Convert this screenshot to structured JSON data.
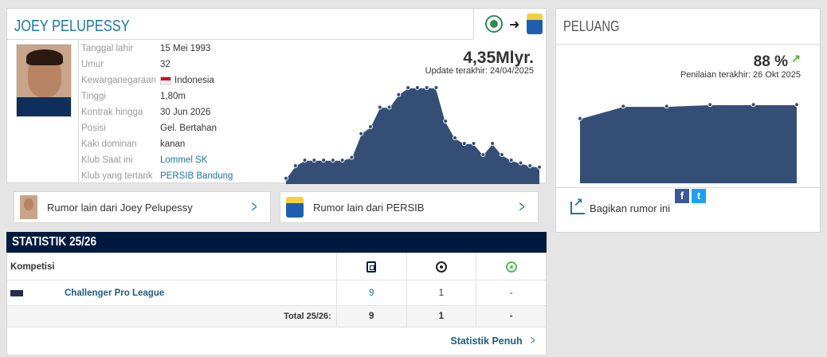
{
  "player": {
    "name": "JOEY PELUPESSY",
    "market_value": "4,35Mlyr.",
    "value_update": "Update terakhir: 24/04/2025",
    "info": [
      {
        "label": "Tanggal lahir",
        "value": "15 Mei 1993"
      },
      {
        "label": "Umur",
        "value": "32"
      },
      {
        "label": "Kewarganegaraan",
        "value": "Indonesia",
        "flag": true
      },
      {
        "label": "Tinggi",
        "value": "1,80m"
      },
      {
        "label": "Kontrak hingga",
        "value": "30 Jun 2026"
      },
      {
        "label": "Posisi",
        "value": "Gel. Bertahan"
      },
      {
        "label": "Kaki dominan",
        "value": "kanan"
      },
      {
        "label": "Klub Saat ini",
        "value": "Lommel SK",
        "link": true
      },
      {
        "label": "Klub yang tertarik",
        "value": "PERSIB Bandung",
        "link": true
      }
    ],
    "value_history": [
      {
        "x": 0,
        "y": 0.3
      },
      {
        "x": 1,
        "y": 1.2
      },
      {
        "x": 2,
        "y": 1.6
      },
      {
        "x": 3,
        "y": 1.6
      },
      {
        "x": 4,
        "y": 1.6
      },
      {
        "x": 5,
        "y": 1.6
      },
      {
        "x": 6,
        "y": 1.6
      },
      {
        "x": 7,
        "y": 1.8
      },
      {
        "x": 8,
        "y": 3.5
      },
      {
        "x": 9,
        "y": 4.0
      },
      {
        "x": 10,
        "y": 5.4
      },
      {
        "x": 11,
        "y": 5.4
      },
      {
        "x": 12,
        "y": 6.3
      },
      {
        "x": 13,
        "y": 6.8
      },
      {
        "x": 14,
        "y": 6.8
      },
      {
        "x": 15,
        "y": 6.8
      },
      {
        "x": 16,
        "y": 6.8
      },
      {
        "x": 17,
        "y": 4.4
      },
      {
        "x": 18,
        "y": 3.2
      },
      {
        "x": 19,
        "y": 2.8
      },
      {
        "x": 20,
        "y": 2.8
      },
      {
        "x": 21,
        "y": 2.0
      },
      {
        "x": 22,
        "y": 2.8
      },
      {
        "x": 23,
        "y": 2.0
      },
      {
        "x": 24,
        "y": 1.6
      },
      {
        "x": 25,
        "y": 1.4
      },
      {
        "x": 26,
        "y": 1.2
      },
      {
        "x": 27,
        "y": 1.1
      }
    ]
  },
  "transfer": {
    "from_club_icon": "lommel-badge-icon",
    "arrow_icon": "arrow-right-icon",
    "to_club_icon": "persib-badge-icon"
  },
  "rumors": {
    "player_link": "Rumor lain dari Joey Pelupessy",
    "club_link": "Rumor lain dari PERSIB"
  },
  "stats": {
    "title": "STATISTIK 25/26",
    "competition_header": "Kompetisi",
    "rows": [
      {
        "competition": "Challenger Pro League",
        "appearances": "9",
        "goals": "1",
        "assists": "-"
      }
    ],
    "total": {
      "label": "Total 25/26:",
      "appearances": "9",
      "goals": "1",
      "assists": "-"
    },
    "full_stats_link": "Statistik Penuh"
  },
  "probability": {
    "title": "PELUANG",
    "value": "88 %",
    "trend": "↗",
    "updated": "Penilaian terakhir: 26 Okt 2025",
    "history": [
      {
        "x": 0,
        "y": 72
      },
      {
        "x": 1,
        "y": 86
      },
      {
        "x": 2,
        "y": 86
      },
      {
        "x": 3,
        "y": 88
      },
      {
        "x": 4,
        "y": 88
      },
      {
        "x": 5,
        "y": 88
      }
    ],
    "share_label": "Bagikan rumor ini",
    "facebook_glyph": "f",
    "twitter_glyph": "t"
  },
  "colors": {
    "accent": "#1d75a3",
    "header_bg": "#00193f",
    "chart_fill": "#354e75"
  }
}
